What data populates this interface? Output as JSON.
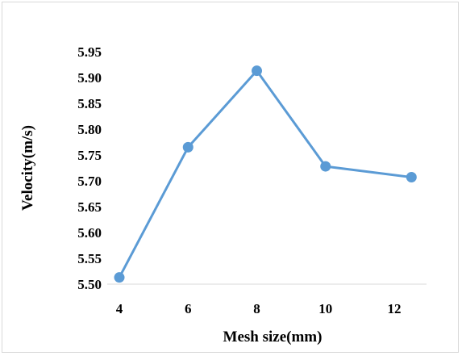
{
  "chart_data": {
    "type": "line",
    "title": "",
    "xlabel": "Mesh size(mm)",
    "ylabel": "Velocity(m/s)",
    "x_ticks": [
      "4",
      "6",
      "8",
      "10",
      "12"
    ],
    "y_ticks": [
      "5.50",
      "5.55",
      "5.60",
      "5.65",
      "5.70",
      "5.75",
      "5.80",
      "5.85",
      "5.90",
      "5.95"
    ],
    "xlim": [
      4,
      12.5
    ],
    "ylim": [
      5.5,
      5.95
    ],
    "grid": false,
    "legend": "none",
    "series": [
      {
        "x": [
          4,
          6,
          8,
          10,
          12.5
        ],
        "y": [
          5.513,
          5.765,
          5.913,
          5.728,
          5.707
        ],
        "color": "#5b9bd5"
      }
    ]
  }
}
